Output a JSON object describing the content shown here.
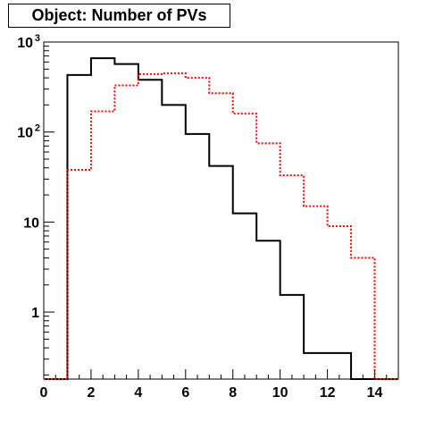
{
  "chart_data": {
    "type": "histogram",
    "title": "Object: Number of PVs",
    "xlabel": "",
    "ylabel": "",
    "xlim": [
      0,
      15
    ],
    "ylim": [
      0.18,
      1000
    ],
    "y_scale": "log",
    "grid": false,
    "bin_edges": [
      0,
      1,
      2,
      3,
      4,
      5,
      6,
      7,
      8,
      9,
      10,
      11,
      12,
      13,
      14,
      15
    ],
    "x_ticks": [
      {
        "value": 0,
        "label": "0"
      },
      {
        "value": 2,
        "label": "2"
      },
      {
        "value": 4,
        "label": "4"
      },
      {
        "value": 6,
        "label": "6"
      },
      {
        "value": 8,
        "label": "8"
      },
      {
        "value": 10,
        "label": "10"
      },
      {
        "value": 12,
        "label": "12"
      },
      {
        "value": 14,
        "label": "14"
      }
    ],
    "y_ticks": [
      {
        "value": 1,
        "base": "1",
        "exp": ""
      },
      {
        "value": 10,
        "base": "10",
        "exp": ""
      },
      {
        "value": 100,
        "base": "10",
        "exp": "2"
      },
      {
        "value": 1000,
        "base": "10",
        "exp": "3"
      }
    ],
    "series": [
      {
        "color": "#000000",
        "style": "solid",
        "values": [
          0,
          430,
          660,
          570,
          380,
          200,
          95,
          42,
          12.5,
          6.2,
          1.55,
          0.35,
          0.35,
          0,
          0
        ]
      },
      {
        "color": "#ff0000",
        "style": "dotted",
        "values": [
          0,
          38,
          170,
          330,
          440,
          450,
          400,
          270,
          160,
          75,
          33,
          15,
          9,
          4,
          0
        ]
      }
    ]
  }
}
